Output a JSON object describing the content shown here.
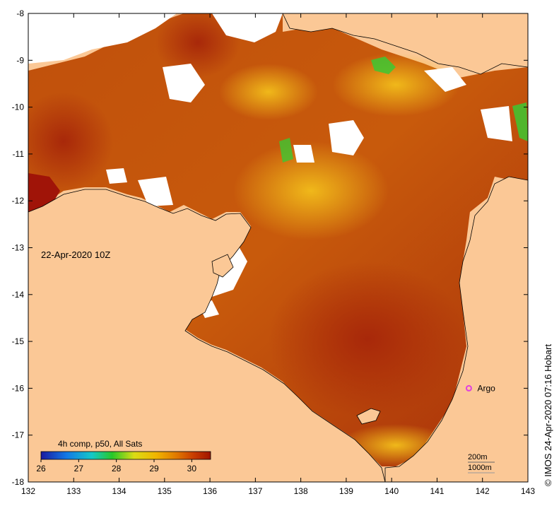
{
  "map": {
    "date_label": "22-Apr-2020 10Z",
    "credit": "© IMOS 24-Apr-2020 07:16 Hobart",
    "lon_ticks": [
      "132",
      "133",
      "134",
      "135",
      "136",
      "137",
      "138",
      "139",
      "140",
      "141",
      "142",
      "143"
    ],
    "lat_ticks": [
      "-8",
      "-9",
      "-10",
      "-11",
      "-12",
      "-13",
      "-14",
      "-15",
      "-16",
      "-17",
      "-18"
    ],
    "lon_range": [
      132,
      143
    ],
    "lat_range": [
      -18,
      -8
    ],
    "argo": {
      "label": "Argo",
      "lon": 141.7,
      "lat": -16.0,
      "color": "#e040e0"
    },
    "colorbar": {
      "title": "4h comp, p50, All Sats",
      "labels": [
        "26",
        "27",
        "28",
        "29",
        "30"
      ],
      "range": [
        26,
        30.5
      ],
      "colors": [
        "#1a1aa0",
        "#1478e6",
        "#14c8c8",
        "#28c828",
        "#dcdc14",
        "#f0b400",
        "#e07800",
        "#c83c00",
        "#a01400"
      ]
    },
    "scale": {
      "depth_200": "200m",
      "depth_1000": "1000m"
    },
    "colors": {
      "land": "#fbc896",
      "no_data": "#ffffff",
      "sst_warm": "#b83c0a",
      "sst_mid": "#d2780f",
      "sst_cool": "#e8b41a",
      "sst_cold": "#3cc832"
    }
  }
}
